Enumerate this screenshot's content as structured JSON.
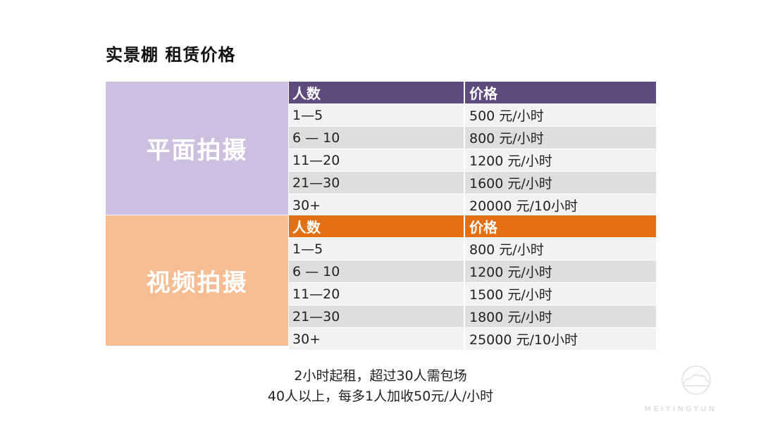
{
  "title": "实景棚 租赁价格",
  "photo": {
    "label": "平面拍摄",
    "header": [
      "人数",
      "价格"
    ],
    "rows": [
      [
        "1—5",
        "500 元/小时"
      ],
      [
        "6 — 10",
        "800 元/小时"
      ],
      [
        "11—20",
        "1200 元/小时"
      ],
      [
        "21—30",
        "1600 元/小时"
      ],
      [
        "30+",
        "20000 元/10小时"
      ]
    ]
  },
  "video": {
    "label": "视频拍摄",
    "header": [
      "人数",
      "价格"
    ],
    "rows": [
      [
        "1—5",
        "800 元/小时"
      ],
      [
        "6 — 10",
        "1200 元/小时"
      ],
      [
        "11—20",
        "1500 元/小时"
      ],
      [
        "21—30",
        "1800 元/小时"
      ],
      [
        "30+",
        "25000 元/10小时"
      ]
    ]
  },
  "notes": [
    "2小时起租，超过30人需包场",
    "40人以上，每多1人加收50元/人/小时"
  ],
  "watermark": {
    "text": "MEIYINGYUN",
    "icon": "cloud-logo-icon"
  },
  "colors": {
    "photo_side": "#cdbfdf",
    "photo_header": "#5e4a7d",
    "video_side": "#f7bd92",
    "video_header": "#e36f14"
  }
}
